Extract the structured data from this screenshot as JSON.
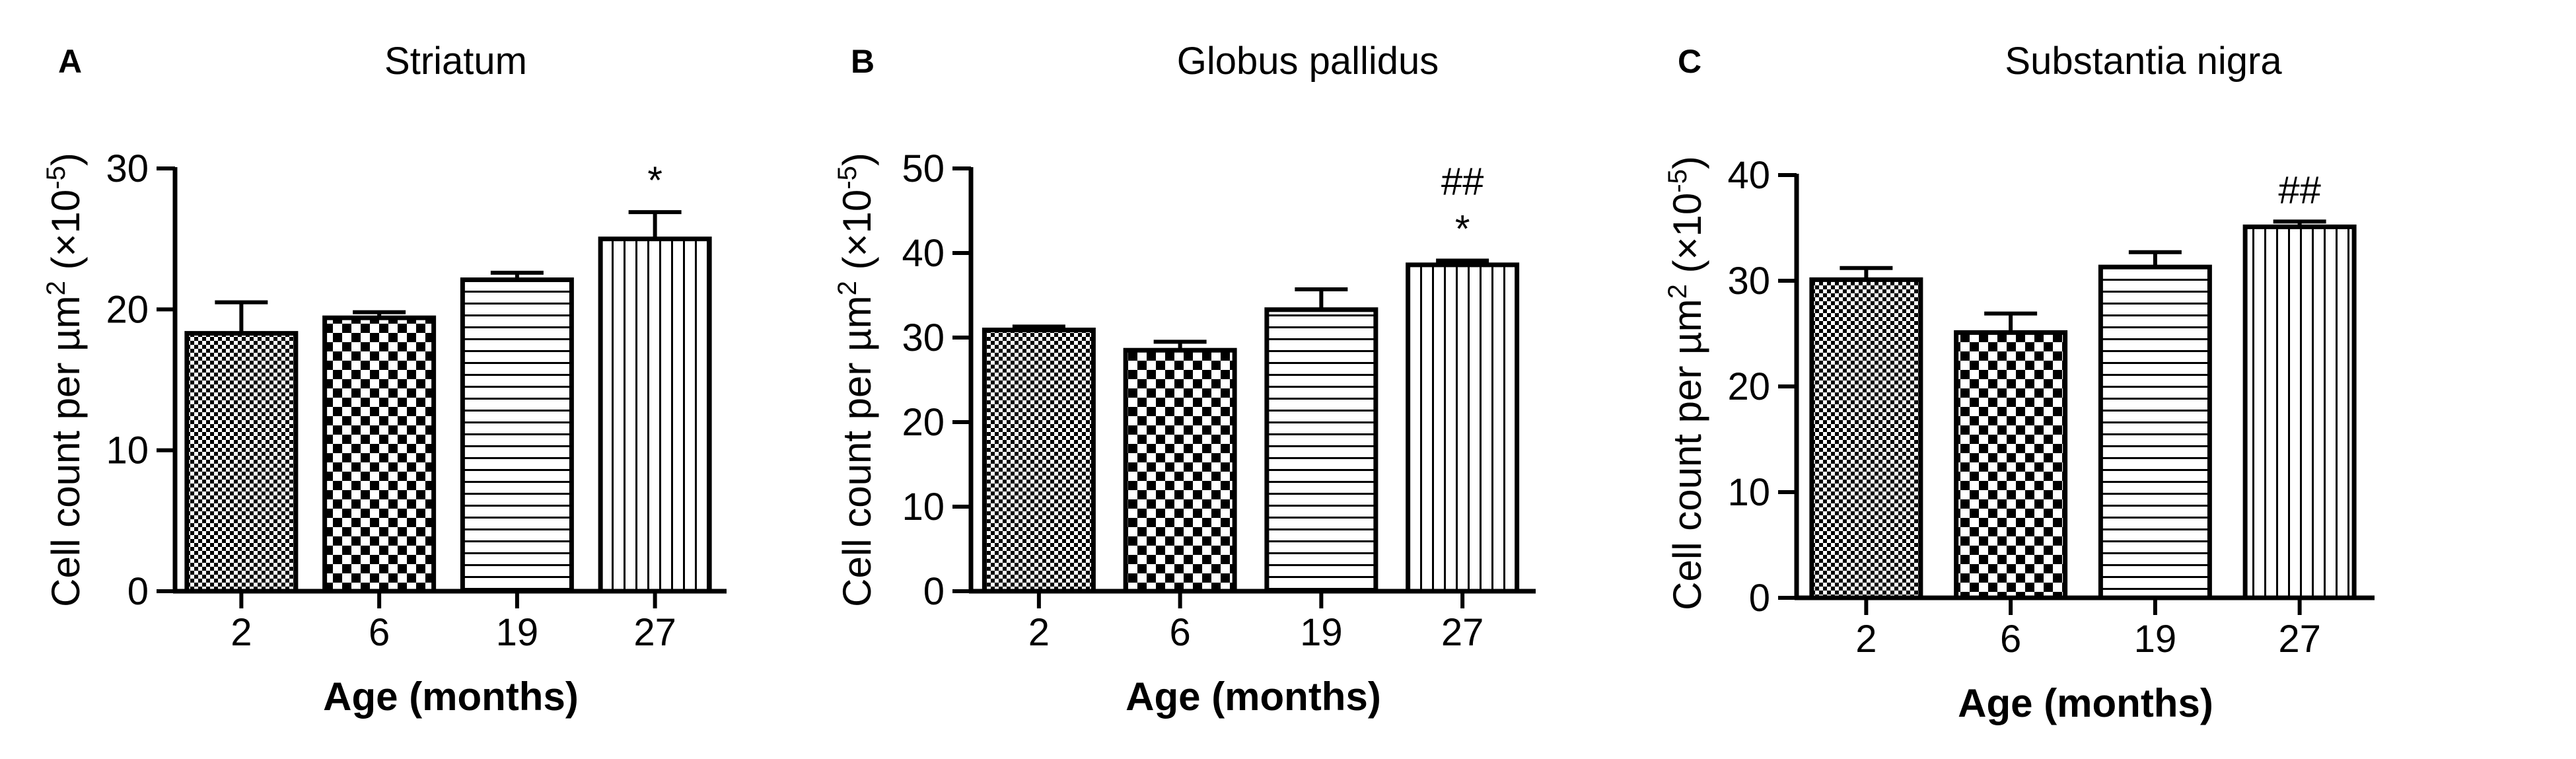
{
  "chart_data": [
    {
      "type": "bar",
      "panel_label": "A",
      "title": "Striatum",
      "categories": [
        "2",
        "6",
        "19",
        "27"
      ],
      "values": [
        18.3,
        19.4,
        22.1,
        25.0
      ],
      "errors": [
        2.2,
        0.4,
        0.5,
        1.9
      ],
      "annotations": [
        "",
        "",
        "",
        "*"
      ],
      "xlabel": "Age (months)",
      "ylabel_main": "Cell count per µm",
      "ylabel_sup": "2",
      "ylabel_scale": "(×10",
      "ylabel_scale_sup": "-5",
      "ylabel_close": ")",
      "ylim": [
        0,
        30
      ],
      "yticks": [
        0,
        10,
        20,
        30
      ],
      "patterns": [
        "fine-check",
        "coarse-check",
        "horizontal-lines",
        "vertical-lines"
      ]
    },
    {
      "type": "bar",
      "panel_label": "B",
      "title": "Globus pallidus",
      "categories": [
        "2",
        "6",
        "19",
        "27"
      ],
      "values": [
        30.9,
        28.5,
        33.3,
        38.6
      ],
      "errors": [
        0.4,
        1.0,
        2.4,
        0.5
      ],
      "annotations": [
        "",
        "",
        "",
        "*"
      ],
      "annotations_top": [
        "",
        "",
        "",
        "##"
      ],
      "xlabel": "Age (months)",
      "ylabel_main": "Cell count per µm",
      "ylabel_sup": "2",
      "ylabel_scale": "(×10",
      "ylabel_scale_sup": "-5",
      "ylabel_close": ")",
      "ylim": [
        0,
        50
      ],
      "yticks": [
        0,
        10,
        20,
        30,
        40,
        50
      ],
      "patterns": [
        "fine-check",
        "coarse-check",
        "horizontal-lines",
        "vertical-lines"
      ]
    },
    {
      "type": "bar",
      "panel_label": "C",
      "title": "Substantia nigra",
      "categories": [
        "2",
        "6",
        "19",
        "27"
      ],
      "values": [
        30.1,
        25.1,
        31.3,
        35.1
      ],
      "errors": [
        1.1,
        1.8,
        1.4,
        0.5
      ],
      "annotations": [
        "",
        "",
        "",
        "##"
      ],
      "xlabel": "Age (months)",
      "ylabel_main": "Cell count per µm",
      "ylabel_sup": "2",
      "ylabel_scale": "(×10",
      "ylabel_scale_sup": "-5",
      "ylabel_close": ")",
      "ylim": [
        0,
        40
      ],
      "yticks": [
        0,
        10,
        20,
        30,
        40
      ],
      "patterns": [
        "fine-check",
        "coarse-check",
        "horizontal-lines",
        "vertical-lines"
      ]
    }
  ]
}
